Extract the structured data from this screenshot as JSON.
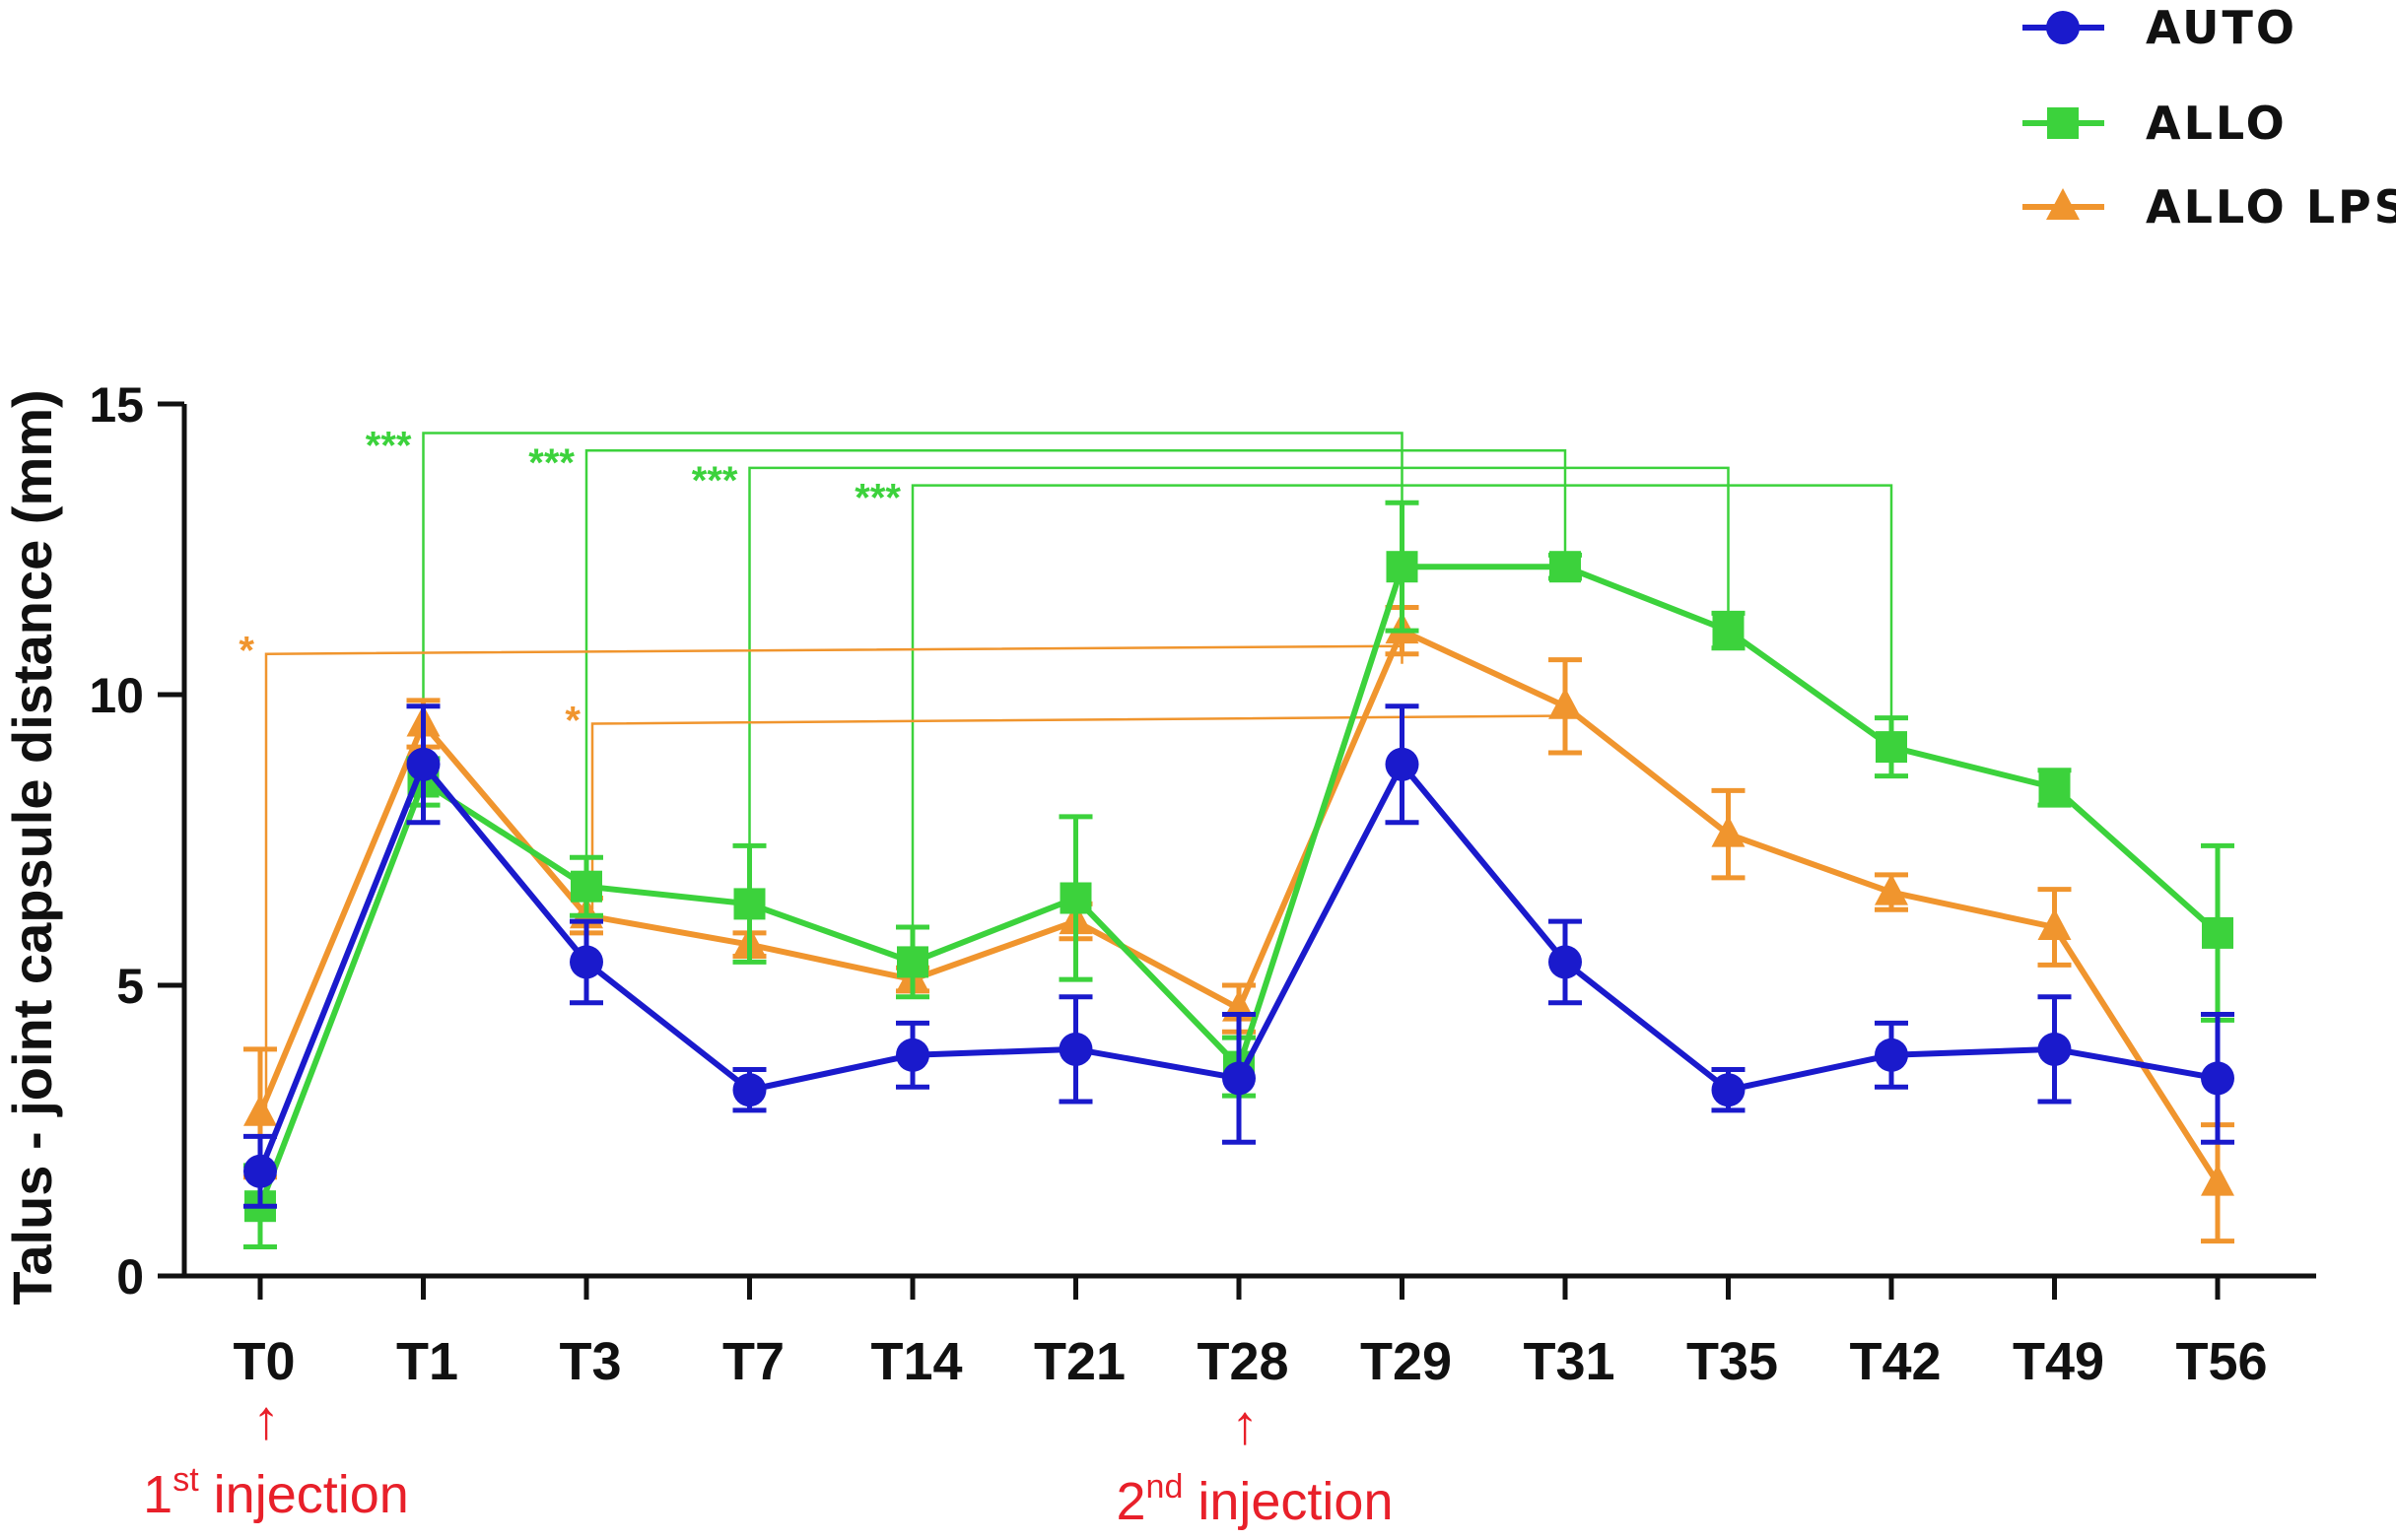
{
  "chart_data": {
    "type": "line",
    "title": "",
    "xlabel": "",
    "ylabel": "Talus - joint capsule distance (mm)",
    "ylim": [
      0,
      15
    ],
    "yticks": [
      0,
      5,
      10,
      15
    ],
    "grid": false,
    "legend_position": "top-right",
    "categories": [
      "T0",
      "T1",
      "T3",
      "T7",
      "T14",
      "T21",
      "T28",
      "T29",
      "T31",
      "T35",
      "T42",
      "T49",
      "T56"
    ],
    "series": [
      {
        "name": "AUTO",
        "color": "#1a1acc",
        "marker": "circle",
        "values": [
          1.8,
          8.8,
          5.4,
          3.2,
          3.8,
          3.9,
          3.4,
          8.8,
          5.4,
          3.2,
          3.8,
          3.9,
          3.4
        ],
        "errors": [
          0.6,
          1.0,
          0.7,
          0.35,
          0.55,
          0.9,
          1.1,
          1.0,
          0.7,
          0.35,
          0.55,
          0.9,
          1.1
        ]
      },
      {
        "name": "ALLO",
        "color": "#3cd23c",
        "marker": "square",
        "values": [
          1.2,
          8.5,
          6.7,
          6.4,
          5.4,
          6.5,
          3.6,
          12.2,
          12.2,
          11.1,
          9.1,
          8.4,
          5.9
        ],
        "errors": [
          0.7,
          0.4,
          0.5,
          1.0,
          0.6,
          1.4,
          0.5,
          1.1,
          0.2,
          0.3,
          0.5,
          0.3,
          1.5
        ]
      },
      {
        "name": "ALLO LPS",
        "color": "#f0952e",
        "marker": "triangle",
        "values": [
          2.8,
          9.5,
          6.2,
          5.7,
          5.1,
          6.1,
          4.6,
          11.1,
          9.8,
          7.6,
          6.6,
          6.0,
          1.6
        ],
        "errors": [
          1.1,
          0.4,
          0.3,
          0.2,
          0.2,
          0.3,
          0.4,
          0.4,
          0.8,
          0.75,
          0.3,
          0.65,
          1.0
        ]
      }
    ],
    "significance": [
      {
        "label": "***",
        "color": "#3cd23c",
        "from": "T1",
        "to": "T29",
        "level": 14.5
      },
      {
        "label": "***",
        "color": "#3cd23c",
        "from": "T3",
        "to": "T31",
        "level": 14.2
      },
      {
        "label": "***",
        "color": "#3cd23c",
        "from": "T7",
        "to": "T35",
        "level": 13.9
      },
      {
        "label": "***",
        "color": "#3cd23c",
        "from": "T14",
        "to": "T42",
        "level": 13.6
      },
      {
        "label": "*",
        "color": "#f0952e",
        "from": "T0",
        "to": "T29",
        "level": 10.7
      },
      {
        "label": "*",
        "color": "#f0952e",
        "from": "T3",
        "to": "T31",
        "level": 9.5
      }
    ],
    "annotations": [
      {
        "arrow": "↑",
        "at": "T0",
        "text": "1",
        "sup": "st",
        "suffix": " injection"
      },
      {
        "arrow": "↑",
        "at": "T28",
        "text": "2",
        "sup": "nd",
        "suffix": " injection"
      }
    ]
  }
}
